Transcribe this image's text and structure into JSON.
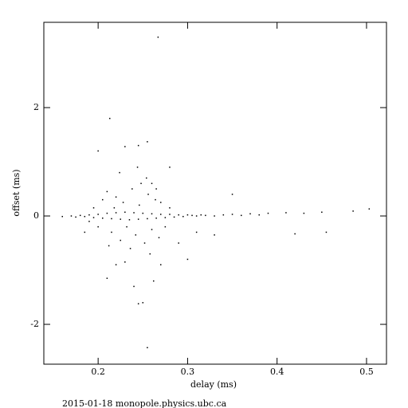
{
  "chart_data": {
    "type": "scatter",
    "x_label": "delay (ms)",
    "y_label": "offset (ms)",
    "footer": "2015-01-18 monopole.physics.ubc.ca",
    "color": "#000000",
    "xlim": [
      0.1393,
      0.5223
    ],
    "ylim": [
      -2.735,
      3.574
    ],
    "xticks": [
      0.2,
      0.3,
      0.4,
      0.5
    ],
    "yticks": [
      -2,
      0,
      2
    ],
    "x": [
      0.16,
      0.17,
      0.175,
      0.18,
      0.185,
      0.19,
      0.195,
      0.2,
      0.205,
      0.21,
      0.215,
      0.22,
      0.225,
      0.23,
      0.235,
      0.24,
      0.245,
      0.25,
      0.255,
      0.26,
      0.265,
      0.27,
      0.275,
      0.28,
      0.285,
      0.29,
      0.295,
      0.3,
      0.305,
      0.31,
      0.315,
      0.32,
      0.33,
      0.34,
      0.35,
      0.36,
      0.37,
      0.38,
      0.39,
      0.41,
      0.43,
      0.45,
      0.485,
      0.503,
      0.205,
      0.21,
      0.215,
      0.22,
      0.225,
      0.228,
      0.232,
      0.238,
      0.242,
      0.248,
      0.252,
      0.256,
      0.26,
      0.264,
      0.268,
      0.2,
      0.195,
      0.19,
      0.218,
      0.236,
      0.246,
      0.254,
      0.258,
      0.244,
      0.224,
      0.212,
      0.23,
      0.27,
      0.275,
      0.28,
      0.29,
      0.3,
      0.31,
      0.33,
      0.28,
      0.2,
      0.213,
      0.23,
      0.245,
      0.255,
      0.267,
      0.25,
      0.245,
      0.255,
      0.21,
      0.262,
      0.42,
      0.455,
      0.24,
      0.185,
      0.22,
      0.27,
      0.265,
      0.26,
      0.35
    ],
    "y": [
      -0.01,
      0,
      -0.02,
      0.01,
      -0.01,
      0.02,
      -0.03,
      0.03,
      -0.04,
      0.05,
      -0.05,
      0.06,
      -0.06,
      0.07,
      -0.07,
      0.06,
      -0.06,
      0.05,
      -0.05,
      0.04,
      -0.04,
      0.03,
      -0.03,
      0.03,
      -0.02,
      0.02,
      -0.01,
      0.02,
      0.01,
      0,
      0.02,
      0.01,
      0,
      0.02,
      0.03,
      0.01,
      0.04,
      0.02,
      0.05,
      0.06,
      0.05,
      0.07,
      0.09,
      0.13,
      0.3,
      0.45,
      -0.3,
      0.35,
      -0.45,
      0.25,
      -0.2,
      0.5,
      -0.35,
      0.6,
      -0.5,
      0.4,
      -0.25,
      0.3,
      -0.4,
      -0.2,
      0.15,
      -0.1,
      0.15,
      -0.6,
      0.2,
      0.7,
      -0.7,
      0.9,
      0.8,
      -0.55,
      -0.85,
      0.25,
      -0.2,
      0.15,
      -0.5,
      -0.8,
      -0.3,
      -0.35,
      0.9,
      1.2,
      1.8,
      1.28,
      1.3,
      1.37,
      3.3,
      -1.6,
      -1.62,
      -2.43,
      -1.15,
      -1.2,
      -0.33,
      -0.3,
      -1.3,
      -0.3,
      -0.9,
      -0.9,
      0.5,
      0.6,
      0.4
    ]
  }
}
